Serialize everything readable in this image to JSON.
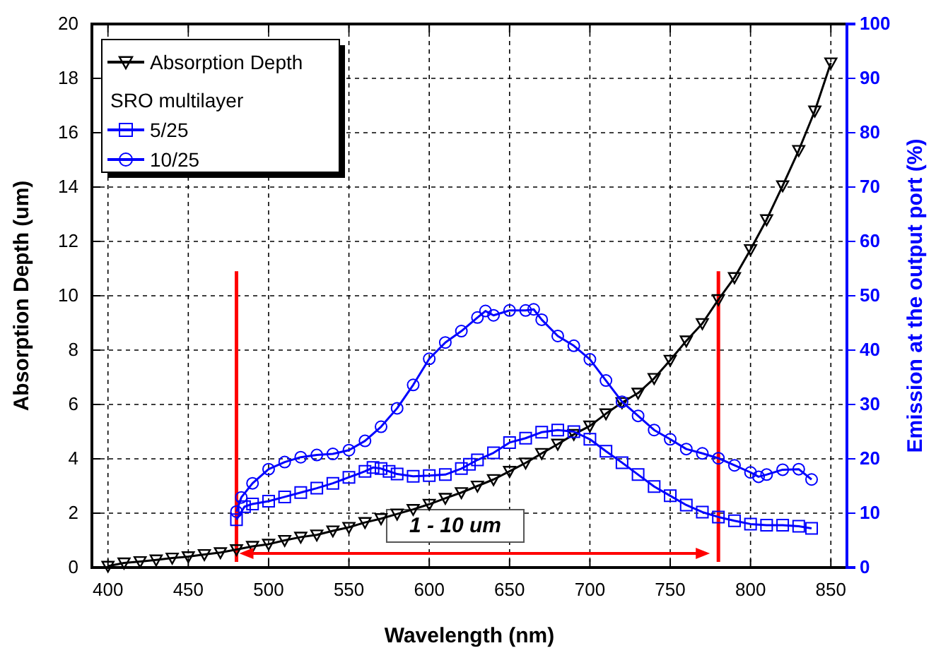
{
  "chart_data": {
    "type": "line",
    "xlabel": "Wavelength (nm)",
    "ylabel": "Absorption Depth (um)",
    "y2label": "Emission at the output port (%)",
    "legend_title": "SRO multilayer",
    "legend": "top left",
    "grid": true,
    "line_style": "solid",
    "xlim": [
      390,
      860
    ],
    "xticks": [
      400,
      450,
      500,
      550,
      600,
      650,
      700,
      750,
      800,
      850
    ],
    "ylim": [
      0,
      20
    ],
    "yticks": [
      0,
      2,
      4,
      6,
      8,
      10,
      12,
      14,
      16,
      18,
      20
    ],
    "y2lim": [
      0,
      100
    ],
    "y2ticks": [
      0,
      10,
      20,
      30,
      40,
      50,
      60,
      70,
      80,
      90,
      100
    ],
    "series": [
      {
        "name": "Absorption Depth",
        "color": "#000000",
        "marker": "triangle",
        "axis": "y",
        "x": [
          400,
          410,
          420,
          430,
          440,
          450,
          460,
          470,
          480,
          490,
          500,
          510,
          520,
          530,
          540,
          550,
          560,
          570,
          580,
          590,
          600,
          610,
          620,
          630,
          640,
          650,
          660,
          670,
          680,
          690,
          700,
          710,
          720,
          730,
          740,
          750,
          760,
          770,
          780,
          790,
          800,
          810,
          820,
          830,
          840,
          850
        ],
        "values": [
          0.05,
          0.17,
          0.22,
          0.28,
          0.35,
          0.4,
          0.48,
          0.55,
          0.66,
          0.78,
          0.86,
          1.0,
          1.12,
          1.2,
          1.35,
          1.48,
          1.66,
          1.8,
          1.97,
          2.14,
          2.33,
          2.55,
          2.76,
          3.0,
          3.24,
          3.54,
          3.85,
          4.2,
          4.54,
          4.9,
          5.21,
          5.66,
          6.07,
          6.42,
          6.96,
          7.63,
          8.34,
          8.98,
          9.86,
          10.67,
          11.7,
          12.8,
          14.05,
          15.35,
          16.8,
          18.57
        ]
      },
      {
        "name": "5/25",
        "color": "#0000ff",
        "marker": "square",
        "axis": "y2",
        "x": [
          480,
          485,
          490,
          500,
          510,
          520,
          530,
          540,
          550,
          560,
          565,
          570,
          575,
          580,
          590,
          600,
          610,
          620,
          625,
          630,
          640,
          650,
          660,
          670,
          680,
          690,
          700,
          710,
          720,
          730,
          740,
          750,
          760,
          770,
          780,
          790,
          800,
          810,
          820,
          830,
          838
        ],
        "values": [
          8.8,
          11.2,
          11.7,
          12.2,
          13.0,
          13.8,
          14.6,
          15.5,
          16.6,
          17.7,
          18.4,
          18.2,
          17.7,
          17.2,
          16.8,
          16.9,
          17.1,
          18.2,
          19.0,
          19.8,
          21.1,
          23.0,
          23.8,
          24.9,
          25.3,
          25.0,
          23.6,
          21.4,
          19.3,
          17.1,
          14.9,
          13.2,
          11.5,
          10.2,
          9.3,
          8.6,
          8.0,
          7.8,
          7.8,
          7.6,
          7.2
        ]
      },
      {
        "name": "10/25",
        "color": "#0000ff",
        "marker": "circle",
        "axis": "y2",
        "x": [
          480,
          483,
          490,
          500,
          510,
          520,
          530,
          540,
          550,
          560,
          570,
          580,
          590,
          600,
          610,
          620,
          630,
          635,
          640,
          650,
          660,
          665,
          670,
          680,
          690,
          700,
          710,
          720,
          730,
          740,
          750,
          760,
          770,
          780,
          790,
          800,
          805,
          810,
          820,
          830,
          838
        ],
        "values": [
          10.3,
          12.9,
          15.5,
          18.1,
          19.4,
          20.3,
          20.7,
          20.9,
          21.6,
          23.3,
          25.9,
          29.3,
          33.6,
          38.4,
          41.4,
          43.5,
          46.0,
          47.2,
          46.4,
          47.3,
          47.3,
          47.5,
          45.6,
          42.6,
          40.8,
          38.3,
          34.4,
          30.5,
          27.9,
          25.3,
          23.6,
          21.8,
          21.0,
          20.1,
          18.8,
          17.5,
          16.7,
          17.1,
          18.0,
          18.1,
          16.2
        ]
      }
    ],
    "ref_lines": [
      {
        "axis": "x",
        "value": 480,
        "color": "#ff0000"
      },
      {
        "axis": "x",
        "value": 780,
        "color": "#ff0000"
      }
    ],
    "annotations": [
      "1 - 10 um"
    ]
  }
}
